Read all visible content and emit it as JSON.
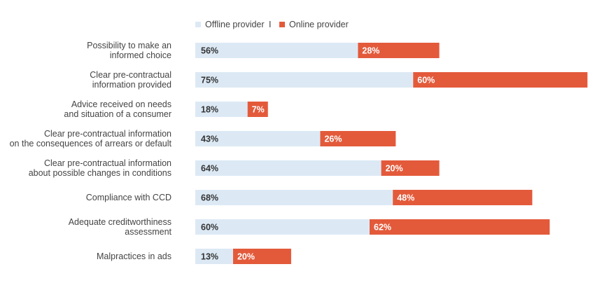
{
  "chart_data": {
    "type": "bar",
    "orientation": "horizontal",
    "stacked": true,
    "legend_position": "top",
    "categories": [
      [
        "Possibility to make an",
        "informed choice"
      ],
      [
        "Clear pre-contractual",
        "information provided"
      ],
      [
        "Advice received on needs",
        "and situation of a consumer"
      ],
      [
        "Clear pre-contractual information",
        "on the consequences of arrears or default"
      ],
      [
        "Clear pre-contractual information",
        "about possible changes in conditions"
      ],
      [
        "Compliance with CCD"
      ],
      [
        "Adequate creditworthiness",
        "assessment"
      ],
      [
        "Malpractices in ads"
      ]
    ],
    "series": [
      {
        "name": "Offline provider",
        "color": "#dce9f5",
        "label_color": "#333333",
        "values": [
          56,
          75,
          18,
          43,
          64,
          68,
          60,
          13
        ],
        "labels": [
          "56%",
          "75%",
          "18%",
          "43%",
          "64%",
          "68%",
          "60%",
          "13%"
        ]
      },
      {
        "name": "Online provider",
        "color": "#e35a3b",
        "label_color": "#ffffff",
        "values": [
          28,
          60,
          7,
          26,
          20,
          48,
          62,
          20
        ],
        "labels": [
          "28%",
          "60%",
          "7%",
          "26%",
          "20%",
          "48%",
          "62%",
          "20%"
        ]
      }
    ],
    "legend_separator": "I",
    "grid": false
  }
}
